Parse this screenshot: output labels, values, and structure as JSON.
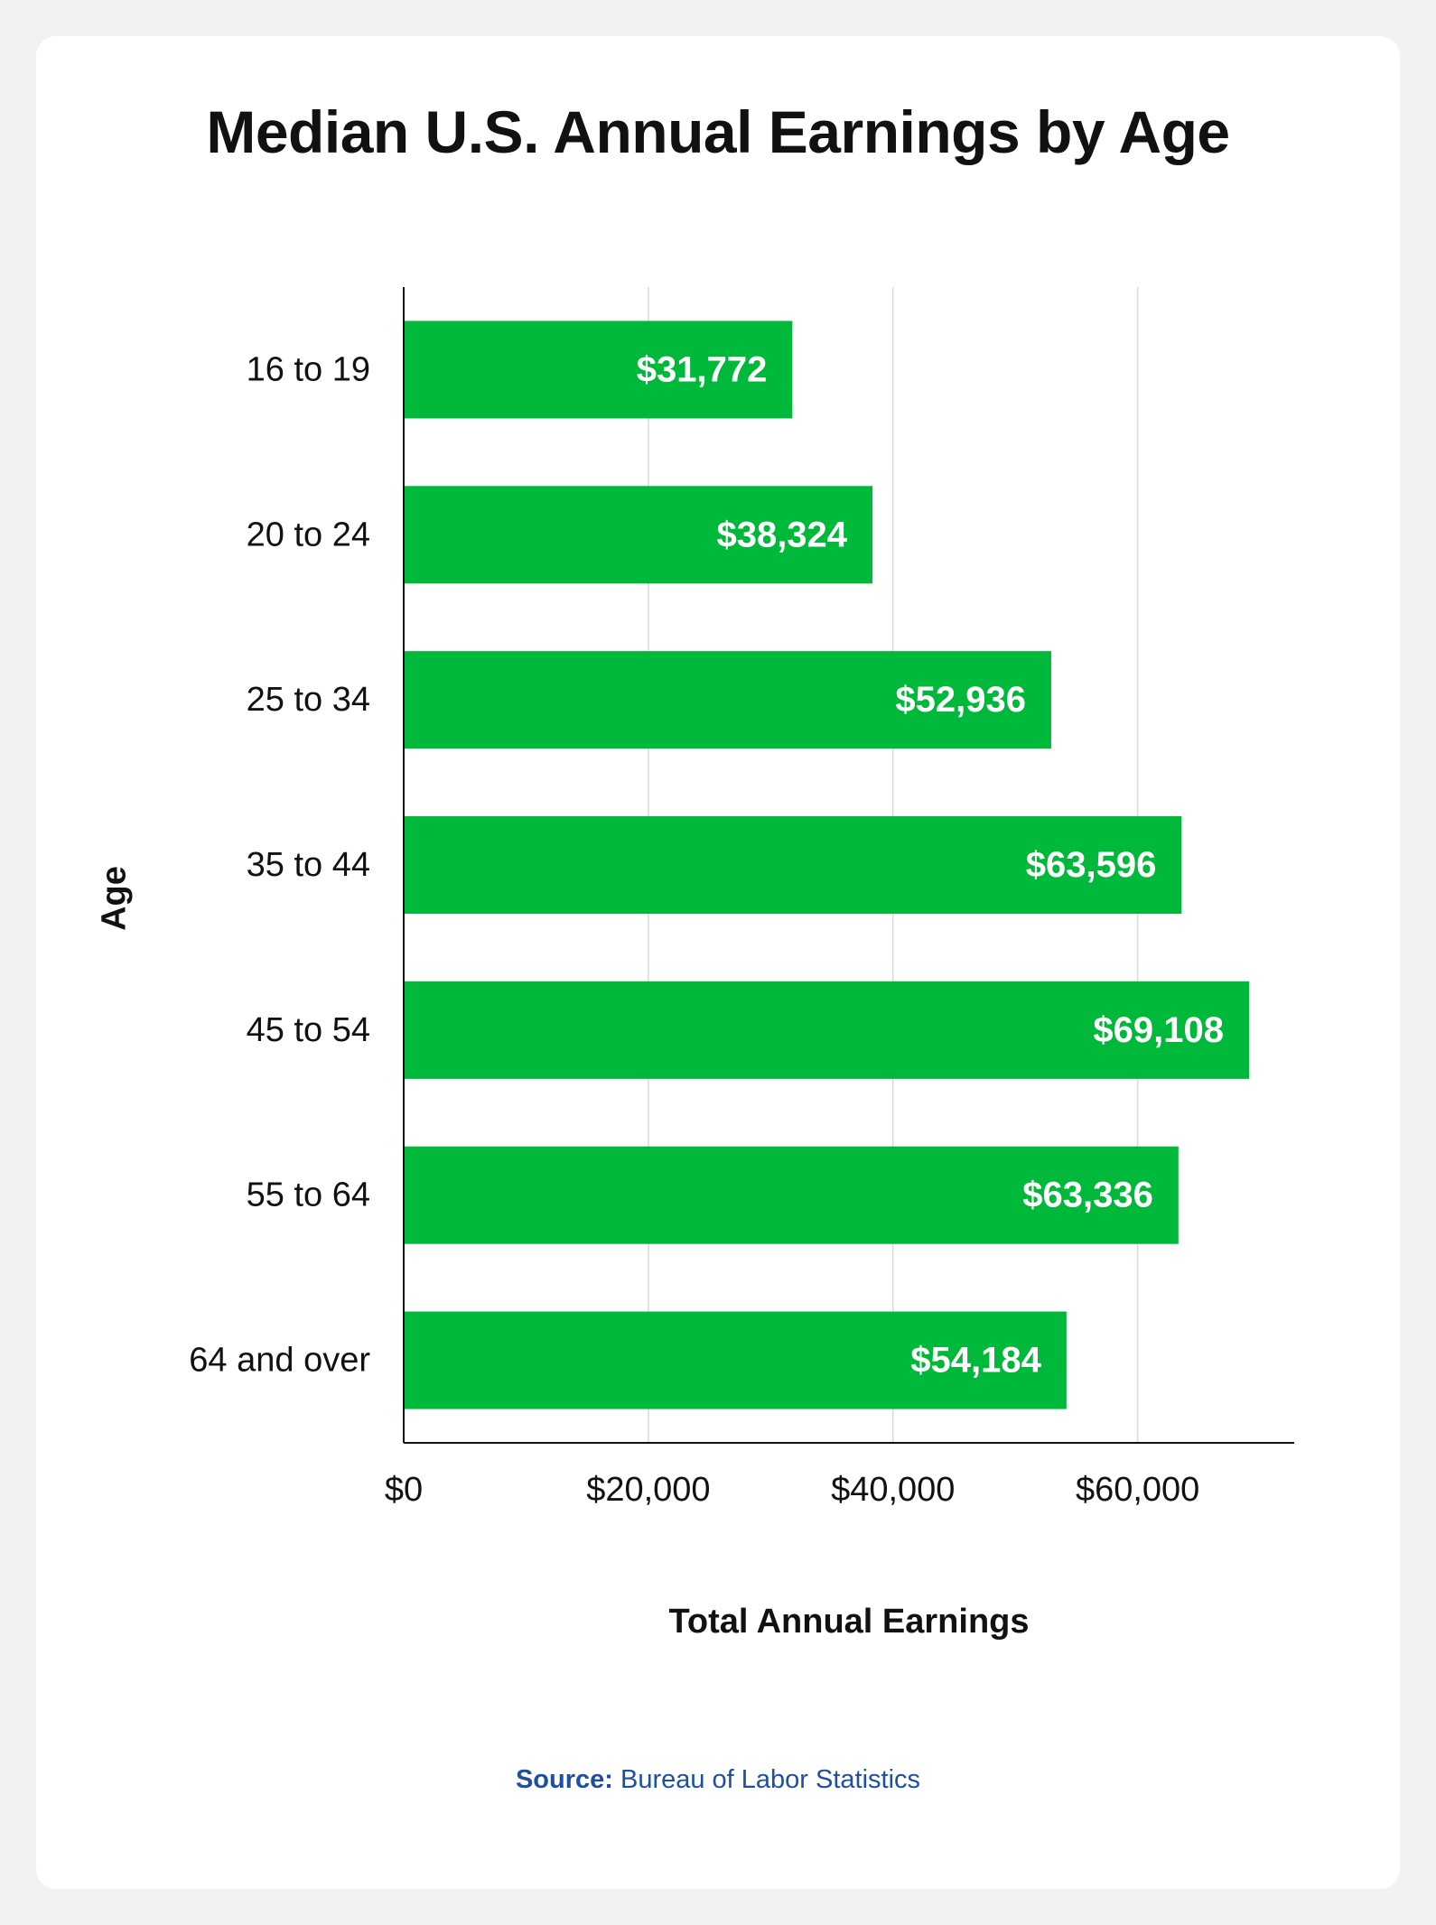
{
  "chart_data": {
    "type": "bar",
    "orientation": "horizontal",
    "title": "Median U.S. Annual Earnings by Age",
    "xlabel": "Total Annual Earnings",
    "ylabel": "Age",
    "categories": [
      "16 to 19",
      "20 to 24",
      "25 to 34",
      "35 to 44",
      "45 to 54",
      "55 to 64",
      "64 and over"
    ],
    "values": [
      31772,
      38324,
      52936,
      63596,
      69108,
      63336,
      54184
    ],
    "value_labels": [
      "$31,772",
      "$38,324",
      "$52,936",
      "$63,596",
      "$69,108",
      "$63,336",
      "$54,184"
    ],
    "x_ticks": [
      0,
      20000,
      40000,
      60000
    ],
    "x_tick_labels": [
      "$0",
      "$20,000",
      "$40,000",
      "$60,000"
    ],
    "xlim": [
      0,
      72800
    ],
    "grid": "vertical",
    "bar_color": "#00b93a",
    "source_label": "Source:",
    "source_text": "Bureau of Labor Statistics"
  }
}
